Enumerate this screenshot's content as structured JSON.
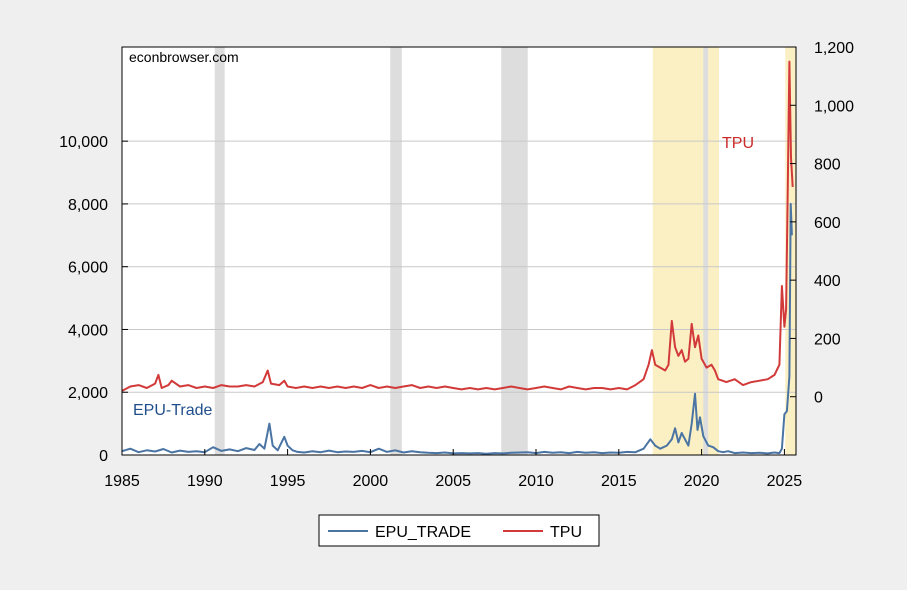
{
  "chart_data": {
    "type": "line",
    "source_label": "econbrowser.com",
    "x_range": [
      1985.0,
      2025.7
    ],
    "x_ticks": [
      "1985",
      "1990",
      "1995",
      "2000",
      "2005",
      "2010",
      "2015",
      "2020",
      "2025"
    ],
    "y_left": {
      "range": [
        0,
        13000
      ],
      "ticks": [
        0,
        2000,
        4000,
        6000,
        8000,
        10000
      ],
      "tick_labels": [
        "0",
        "2,000",
        "4,000",
        "6,000",
        "8,000",
        "10,000"
      ]
    },
    "y_right": {
      "range": [
        -200,
        1200
      ],
      "ticks": [
        0,
        200,
        400,
        600,
        800,
        1000,
        1200
      ],
      "tick_labels": [
        "0",
        "200",
        "400",
        "600",
        "800",
        "1,000",
        "1,200"
      ]
    },
    "grid": true,
    "legend_position": "bottom-center",
    "annotations": [
      {
        "text": "EPU-Trade",
        "color": "#1f4e8c"
      },
      {
        "text": "TPU",
        "color": "#cc2a2a"
      }
    ],
    "shaded_regions": {
      "recessions": [
        [
          1990.6,
          1991.2
        ],
        [
          2001.2,
          2001.9
        ],
        [
          2007.9,
          2009.5
        ],
        [
          2020.1,
          2020.4
        ]
      ],
      "trump_terms": [
        [
          2017.05,
          2021.05
        ],
        [
          2025.05,
          2025.7
        ]
      ]
    },
    "colors": {
      "recession": "#dddddd",
      "term": "#fbf0c4",
      "epu": "#4a74a3",
      "tpu": "#d23a3a"
    },
    "series": [
      {
        "name": "EPU_TRADE",
        "axis": "left",
        "color": "#4a74a3",
        "points": [
          [
            1985.0,
            120
          ],
          [
            1985.5,
            200
          ],
          [
            1986.0,
            90
          ],
          [
            1986.5,
            150
          ],
          [
            1987.0,
            110
          ],
          [
            1987.5,
            190
          ],
          [
            1988.0,
            80
          ],
          [
            1988.5,
            140
          ],
          [
            1989.0,
            100
          ],
          [
            1989.5,
            120
          ],
          [
            1990.0,
            90
          ],
          [
            1990.5,
            250
          ],
          [
            1991.0,
            130
          ],
          [
            1991.5,
            180
          ],
          [
            1992.0,
            120
          ],
          [
            1992.5,
            220
          ],
          [
            1993.0,
            160
          ],
          [
            1993.3,
            350
          ],
          [
            1993.6,
            200
          ],
          [
            1993.9,
            1000
          ],
          [
            1994.1,
            300
          ],
          [
            1994.4,
            150
          ],
          [
            1994.8,
            580
          ],
          [
            1995.0,
            300
          ],
          [
            1995.3,
            150
          ],
          [
            1995.6,
            100
          ],
          [
            1996.0,
            80
          ],
          [
            1996.5,
            120
          ],
          [
            1997.0,
            90
          ],
          [
            1997.5,
            140
          ],
          [
            1998.0,
            90
          ],
          [
            1998.5,
            110
          ],
          [
            1999.0,
            100
          ],
          [
            1999.5,
            130
          ],
          [
            2000.0,
            90
          ],
          [
            2000.5,
            200
          ],
          [
            2001.0,
            100
          ],
          [
            2001.5,
            150
          ],
          [
            2002.0,
            80
          ],
          [
            2002.5,
            120
          ],
          [
            2003.0,
            90
          ],
          [
            2003.5,
            70
          ],
          [
            2004.0,
            60
          ],
          [
            2004.5,
            80
          ],
          [
            2005.0,
            50
          ],
          [
            2005.5,
            60
          ],
          [
            2006.0,
            50
          ],
          [
            2006.5,
            60
          ],
          [
            2007.0,
            40
          ],
          [
            2007.5,
            60
          ],
          [
            2008.0,
            50
          ],
          [
            2008.5,
            70
          ],
          [
            2009.0,
            80
          ],
          [
            2009.5,
            90
          ],
          [
            2010.0,
            60
          ],
          [
            2010.5,
            100
          ],
          [
            2011.0,
            70
          ],
          [
            2011.5,
            90
          ],
          [
            2012.0,
            60
          ],
          [
            2012.5,
            100
          ],
          [
            2013.0,
            70
          ],
          [
            2013.5,
            90
          ],
          [
            2014.0,
            60
          ],
          [
            2014.5,
            80
          ],
          [
            2015.0,
            70
          ],
          [
            2015.5,
            100
          ],
          [
            2016.0,
            90
          ],
          [
            2016.5,
            200
          ],
          [
            2016.9,
            500
          ],
          [
            2017.2,
            300
          ],
          [
            2017.5,
            200
          ],
          [
            2017.9,
            300
          ],
          [
            2018.2,
            500
          ],
          [
            2018.4,
            850
          ],
          [
            2018.6,
            400
          ],
          [
            2018.8,
            700
          ],
          [
            2019.0,
            500
          ],
          [
            2019.2,
            300
          ],
          [
            2019.4,
            1000
          ],
          [
            2019.6,
            1950
          ],
          [
            2019.75,
            800
          ],
          [
            2019.9,
            1200
          ],
          [
            2020.1,
            600
          ],
          [
            2020.4,
            300
          ],
          [
            2020.7,
            250
          ],
          [
            2021.0,
            120
          ],
          [
            2021.3,
            90
          ],
          [
            2021.6,
            120
          ],
          [
            2022.0,
            60
          ],
          [
            2022.5,
            80
          ],
          [
            2023.0,
            60
          ],
          [
            2023.5,
            70
          ],
          [
            2024.0,
            50
          ],
          [
            2024.4,
            80
          ],
          [
            2024.7,
            60
          ],
          [
            2024.85,
            200
          ],
          [
            2025.0,
            1300
          ],
          [
            2025.15,
            1400
          ],
          [
            2025.3,
            2500
          ],
          [
            2025.38,
            8000
          ],
          [
            2025.45,
            7000
          ]
        ]
      },
      {
        "name": "TPU",
        "axis": "right",
        "color": "#d23a3a",
        "points": [
          [
            1985.0,
            20
          ],
          [
            1985.5,
            35
          ],
          [
            1986.0,
            40
          ],
          [
            1986.5,
            30
          ],
          [
            1987.0,
            45
          ],
          [
            1987.2,
            75
          ],
          [
            1987.4,
            30
          ],
          [
            1987.8,
            40
          ],
          [
            1988.0,
            55
          ],
          [
            1988.5,
            35
          ],
          [
            1989.0,
            40
          ],
          [
            1989.5,
            30
          ],
          [
            1990.0,
            35
          ],
          [
            1990.5,
            30
          ],
          [
            1991.0,
            40
          ],
          [
            1991.5,
            35
          ],
          [
            1992.0,
            35
          ],
          [
            1992.5,
            40
          ],
          [
            1993.0,
            35
          ],
          [
            1993.5,
            50
          ],
          [
            1993.8,
            90
          ],
          [
            1994.0,
            45
          ],
          [
            1994.5,
            40
          ],
          [
            1994.8,
            55
          ],
          [
            1995.0,
            35
          ],
          [
            1995.5,
            30
          ],
          [
            1996.0,
            35
          ],
          [
            1996.5,
            30
          ],
          [
            1997.0,
            35
          ],
          [
            1997.5,
            30
          ],
          [
            1998.0,
            35
          ],
          [
            1998.5,
            30
          ],
          [
            1999.0,
            35
          ],
          [
            1999.5,
            30
          ],
          [
            2000.0,
            40
          ],
          [
            2000.5,
            30
          ],
          [
            2001.0,
            35
          ],
          [
            2001.5,
            30
          ],
          [
            2002.0,
            35
          ],
          [
            2002.5,
            40
          ],
          [
            2003.0,
            30
          ],
          [
            2003.5,
            35
          ],
          [
            2004.0,
            30
          ],
          [
            2004.5,
            35
          ],
          [
            2005.0,
            30
          ],
          [
            2005.5,
            25
          ],
          [
            2006.0,
            30
          ],
          [
            2006.5,
            25
          ],
          [
            2007.0,
            30
          ],
          [
            2007.5,
            25
          ],
          [
            2008.0,
            30
          ],
          [
            2008.5,
            35
          ],
          [
            2009.0,
            30
          ],
          [
            2009.5,
            25
          ],
          [
            2010.0,
            30
          ],
          [
            2010.5,
            35
          ],
          [
            2011.0,
            30
          ],
          [
            2011.5,
            25
          ],
          [
            2012.0,
            35
          ],
          [
            2012.5,
            30
          ],
          [
            2013.0,
            25
          ],
          [
            2013.5,
            30
          ],
          [
            2014.0,
            30
          ],
          [
            2014.5,
            25
          ],
          [
            2015.0,
            30
          ],
          [
            2015.5,
            25
          ],
          [
            2016.0,
            40
          ],
          [
            2016.5,
            60
          ],
          [
            2016.8,
            110
          ],
          [
            2017.0,
            160
          ],
          [
            2017.2,
            110
          ],
          [
            2017.5,
            100
          ],
          [
            2017.8,
            90
          ],
          [
            2018.0,
            110
          ],
          [
            2018.2,
            260
          ],
          [
            2018.4,
            170
          ],
          [
            2018.6,
            140
          ],
          [
            2018.8,
            160
          ],
          [
            2019.0,
            120
          ],
          [
            2019.2,
            130
          ],
          [
            2019.4,
            250
          ],
          [
            2019.6,
            170
          ],
          [
            2019.8,
            210
          ],
          [
            2020.0,
            130
          ],
          [
            2020.3,
            100
          ],
          [
            2020.6,
            110
          ],
          [
            2020.8,
            90
          ],
          [
            2021.0,
            60
          ],
          [
            2021.5,
            50
          ],
          [
            2022.0,
            60
          ],
          [
            2022.5,
            40
          ],
          [
            2023.0,
            50
          ],
          [
            2023.5,
            55
          ],
          [
            2024.0,
            60
          ],
          [
            2024.4,
            75
          ],
          [
            2024.7,
            110
          ],
          [
            2024.85,
            380
          ],
          [
            2025.0,
            240
          ],
          [
            2025.1,
            300
          ],
          [
            2025.2,
            700
          ],
          [
            2025.3,
            1150
          ],
          [
            2025.4,
            820
          ],
          [
            2025.5,
            720
          ]
        ]
      }
    ]
  }
}
